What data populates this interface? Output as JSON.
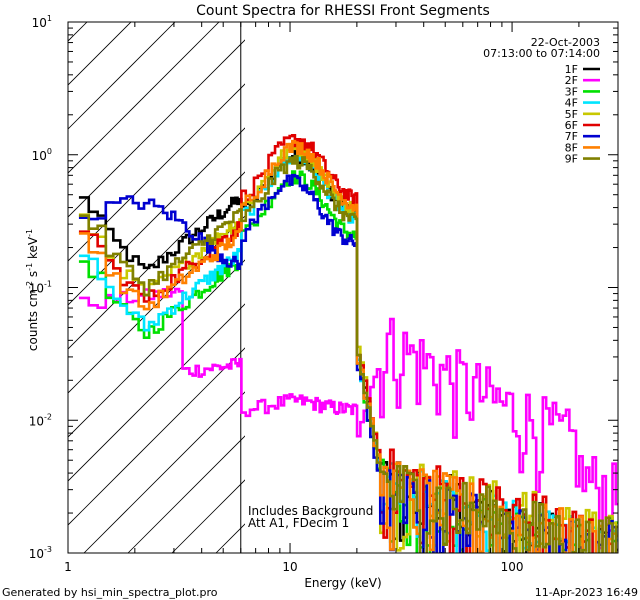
{
  "chart_data": {
    "type": "line",
    "title": "Count Spectra for RHESSI Front Segments",
    "xlabel": "Energy (keV)",
    "ylabel_main": "counts cm",
    "ylabel_exp1": "-2",
    "ylabel_mid": " s",
    "ylabel_exp2": "-1",
    "ylabel_end": " keV",
    "ylabel_exp3": "-1",
    "x_scale": "log",
    "y_scale": "log",
    "xlim": [
      1,
      300
    ],
    "ylim": [
      0.001,
      10
    ],
    "x_ticks": [
      {
        "value": 1,
        "label": "1"
      },
      {
        "value": 10,
        "label": "10"
      },
      {
        "value": 100,
        "label": "100"
      }
    ],
    "y_ticks": [
      {
        "value": 0.001,
        "base": "10",
        "exp": "-3"
      },
      {
        "value": 0.01,
        "base": "10",
        "exp": "-2"
      },
      {
        "value": 0.1,
        "base": "10",
        "exp": "-1"
      },
      {
        "value": 1,
        "base": "10",
        "exp": "0"
      },
      {
        "value": 10,
        "base": "10",
        "exp": "1"
      }
    ],
    "hatched_region": {
      "x_from": 1,
      "x_to": 6
    },
    "date": "22-Oct-2003",
    "time_range": "07:13:00 to 07:14:00",
    "annotations": [
      "Includes Background",
      "Att A1, FDecim 1"
    ],
    "series": [
      {
        "name": "1F",
        "color": "#000000",
        "peak": 0.95,
        "low": 0.13,
        "tail": 0.003
      },
      {
        "name": "2F",
        "color": "#ff00ff",
        "peak": 0.06,
        "low": 0.09,
        "tail": 0.009
      },
      {
        "name": "3F",
        "color": "#00e000",
        "peak": 0.65,
        "low": 0.045,
        "tail": 0.0025
      },
      {
        "name": "4F",
        "color": "#00e5ff",
        "peak": 0.9,
        "low": 0.05,
        "tail": 0.0028
      },
      {
        "name": "5F",
        "color": "#c8c800",
        "peak": 1.05,
        "low": 0.09,
        "tail": 0.0035
      },
      {
        "name": "6F",
        "color": "#e00000",
        "peak": 1.25,
        "low": 0.08,
        "tail": 0.0035
      },
      {
        "name": "7F",
        "color": "#0000d0",
        "peak": 0.6,
        "low": 0.35,
        "tail": 0.0025
      },
      {
        "name": "8F",
        "color": "#ff8000",
        "peak": 1.1,
        "low": 0.07,
        "tail": 0.003
      },
      {
        "name": "9F",
        "color": "#808000",
        "peak": 0.85,
        "low": 0.1,
        "tail": 0.003
      }
    ]
  },
  "footer": {
    "left": "Generated by hsi_min_spectra_plot.pro",
    "right": "11-Apr-2023 16:49"
  }
}
